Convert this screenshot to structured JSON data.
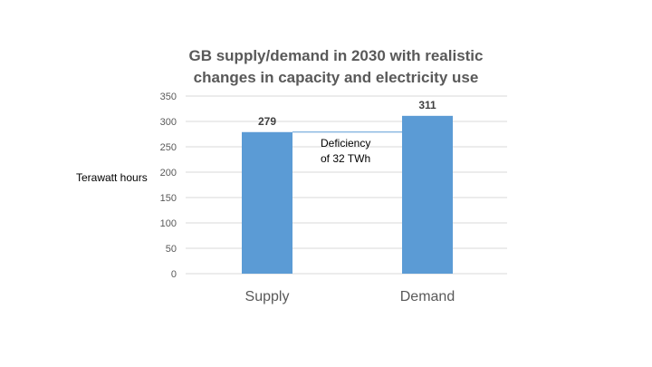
{
  "chart_data": {
    "type": "bar",
    "title_lines": [
      "GB supply/demand in 2030 with realistic",
      "changes in capacity and electricity use"
    ],
    "categories": [
      "Supply",
      "Demand"
    ],
    "values": [
      279,
      311
    ],
    "data_labels": [
      "279",
      "311"
    ],
    "ylabel": "Terawatt hours",
    "xlabel": "",
    "ylim": [
      0,
      350
    ],
    "yticks": [
      0,
      50,
      100,
      150,
      200,
      250,
      300,
      350
    ],
    "grid": true,
    "bar_color": "#5b9bd5",
    "annotation": {
      "lines": [
        "Deficiency",
        "of 32 TWh"
      ],
      "line_value": 279
    }
  }
}
